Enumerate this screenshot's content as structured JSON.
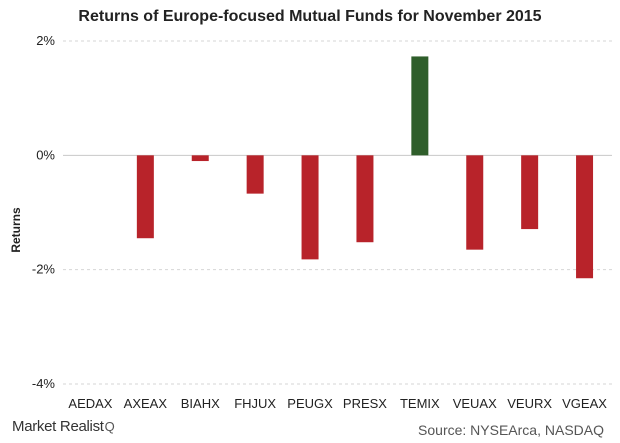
{
  "chart_data": {
    "type": "bar",
    "title": "Returns of Europe-focused Mutual Funds for November 2015",
    "xlabel": "",
    "ylabel": "Returns",
    "categories": [
      "AEDAX",
      "AXEAX",
      "BIAHX",
      "FHJUX",
      "PEUGX",
      "PRESX",
      "TEMIX",
      "VEUAX",
      "VEURX",
      "VGEAX"
    ],
    "values": [
      0.0,
      -1.45,
      -0.1,
      -0.67,
      -1.82,
      -1.52,
      1.73,
      -1.65,
      -1.29,
      -2.15
    ],
    "ylim": [
      -4,
      2
    ],
    "yticks": [
      2,
      0,
      -2,
      -4
    ],
    "ytick_labels": [
      "2%",
      "0%",
      "-2%",
      "-4%"
    ],
    "grid": true,
    "legend": "none",
    "colors": {
      "positive": "#2f5e2b",
      "negative": "#b8232a",
      "grid": "#d6d6d6",
      "zero_line": "#c8c8c8"
    }
  },
  "branding": {
    "logo_text": "Market Realist",
    "logo_mark": "Q"
  },
  "source": "Source: NYSEArca, NASDAQ"
}
